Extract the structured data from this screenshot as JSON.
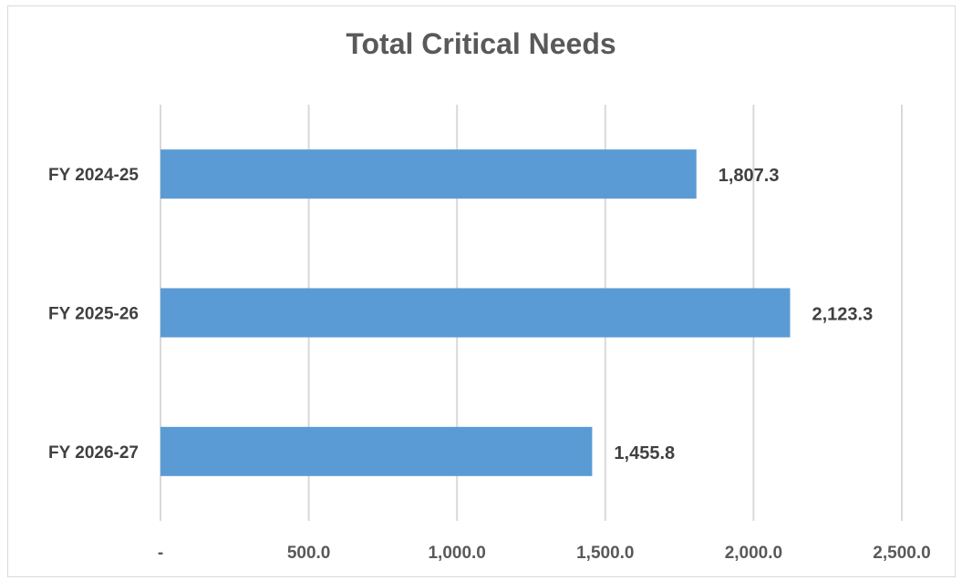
{
  "chart_data": {
    "type": "bar",
    "orientation": "horizontal",
    "title": "Total Critical Needs",
    "xlabel": "",
    "ylabel": "",
    "categories": [
      "FY 2024-25",
      "FY 2025-26",
      "FY 2026-27"
    ],
    "values": [
      1807.3,
      2123.3,
      1455.8
    ],
    "data_labels": [
      "1,807.3",
      "2,123.3",
      "1,455.8"
    ],
    "xlim": [
      0,
      2500
    ],
    "x_ticks": [
      0,
      500,
      1000,
      1500,
      2000,
      2500
    ],
    "x_tick_labels": [
      "-",
      "500.0",
      "1,000.0",
      "1,500.0",
      "2,000.0",
      "2,500.0"
    ],
    "grid": "vertical",
    "legend": "none",
    "bar_color": "#5b9bd5",
    "grid_color": "#d9d9d9"
  }
}
